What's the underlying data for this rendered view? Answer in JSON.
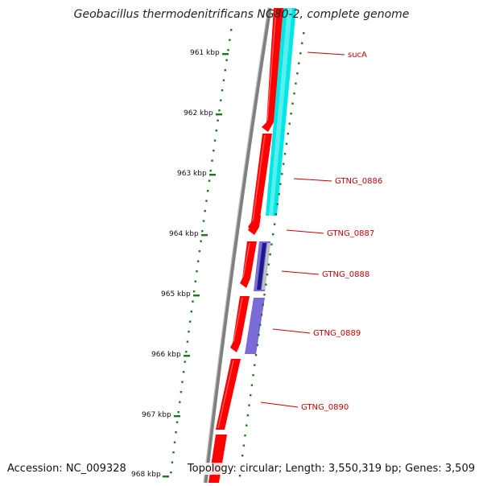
{
  "title": "Geobacillus thermodenitrificans NG80-2, complete genome",
  "footer": {
    "accession": "Accession: NC_009328",
    "topology": "Topology: circular; Length: 3,550,319 bp; Genes: 3,509"
  },
  "colors": {
    "backbone": "#808080",
    "cds_forward": "#ff0000",
    "feature_cyan": "#00e5e5",
    "feature_purple": "#7a6bd6",
    "feature_navy": "#1a1a8c",
    "gc_dots": "#1a7a1a",
    "label": "#cc0000"
  },
  "ruler": [
    {
      "label": "961 kbp"
    },
    {
      "label": "962 kbp"
    },
    {
      "label": "963 kbp"
    },
    {
      "label": "964 kbp"
    },
    {
      "label": "965 kbp"
    },
    {
      "label": "966 kbp"
    },
    {
      "label": "967 kbp"
    },
    {
      "label": "968 kbp"
    }
  ],
  "gene_labels": [
    {
      "name": "sucA"
    },
    {
      "name": "GTNG_0886"
    },
    {
      "name": "GTNG_0887"
    },
    {
      "name": "GTNG_0888"
    },
    {
      "name": "GTNG_0889"
    },
    {
      "name": "GTNG_0890"
    }
  ]
}
